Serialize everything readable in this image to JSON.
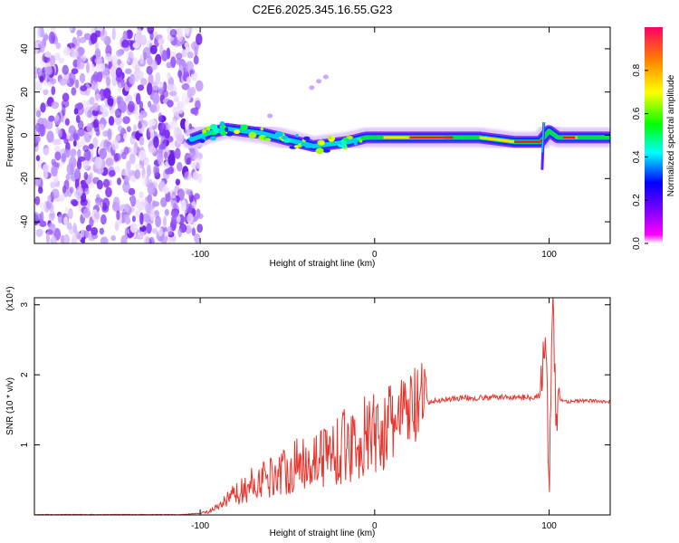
{
  "title": "C2E6.2025.345.16.55.G23",
  "chart_data": [
    {
      "type": "heatmap",
      "title": "C2E6.2025.345.16.55.G23",
      "xlabel": "Height of straight line (km)",
      "ylabel": "Frequency (Hz)",
      "xlim": [
        -195,
        135
      ],
      "ylim": [
        -50,
        50
      ],
      "xticks": [
        -100,
        0,
        100
      ],
      "yticks": [
        -40,
        -20,
        0,
        20,
        40
      ],
      "colorbar": {
        "label": "Normalized spectral amplitude",
        "range": [
          0,
          1
        ],
        "ticks": [
          "0.0",
          "0.2",
          "0.4",
          "0.6",
          "0.8"
        ],
        "colors": [
          "#ffffff",
          "#ff00ff",
          "#8000ff",
          "#0000ff",
          "#00ffff",
          "#00ff00",
          "#ffff00",
          "#ff8000",
          "#ff0000"
        ]
      },
      "ridge_line": {
        "description_x_km": [
          -105,
          -95,
          -85,
          -75,
          -65,
          -55,
          -45,
          -35,
          -25,
          -15,
          -5,
          5,
          20,
          40,
          60,
          80,
          95,
          100,
          105,
          120,
          135
        ],
        "frequency_hz": [
          -2,
          1,
          3,
          2,
          1,
          -1,
          -3,
          -5,
          -4,
          -3,
          -1,
          -1,
          -1,
          -1,
          -1,
          -3,
          -3,
          2,
          -1,
          -1,
          -1
        ]
      },
      "noise_region_x_km": [
        -195,
        -100
      ]
    },
    {
      "type": "line",
      "xlabel": "Height of straight line (km)",
      "ylabel": "SNR (10 * v/v)",
      "scale_label": "(x10⁴)",
      "xlim": [
        -195,
        135
      ],
      "ylim": [
        0,
        3.1
      ],
      "xticks": [
        -100,
        0,
        100
      ],
      "yticks": [
        1,
        2,
        3
      ],
      "color": "#e8342c",
      "series": [
        {
          "name": "SNR",
          "x": [
            -195,
            -110,
            -100,
            -95,
            -90,
            -85,
            -80,
            -75,
            -70,
            -65,
            -60,
            -55,
            -50,
            -45,
            -40,
            -35,
            -30,
            -25,
            -20,
            -15,
            -10,
            -5,
            0,
            5,
            10,
            15,
            20,
            25,
            30,
            40,
            50,
            60,
            70,
            80,
            90,
            95,
            98,
            100,
            102,
            104,
            106,
            110,
            120,
            135
          ],
          "y": [
            0.0,
            0.0,
            0.02,
            0.05,
            0.1,
            0.2,
            0.3,
            0.35,
            0.45,
            0.5,
            0.55,
            0.6,
            0.65,
            0.7,
            0.78,
            0.8,
            0.85,
            0.9,
            0.95,
            1.0,
            1.05,
            1.1,
            1.15,
            1.2,
            1.3,
            1.4,
            1.5,
            1.55,
            1.6,
            1.65,
            1.67,
            1.67,
            1.68,
            1.68,
            1.68,
            1.7,
            2.7,
            0.2,
            3.0,
            1.4,
            1.65,
            1.62,
            1.63,
            1.62
          ]
        }
      ]
    }
  ]
}
